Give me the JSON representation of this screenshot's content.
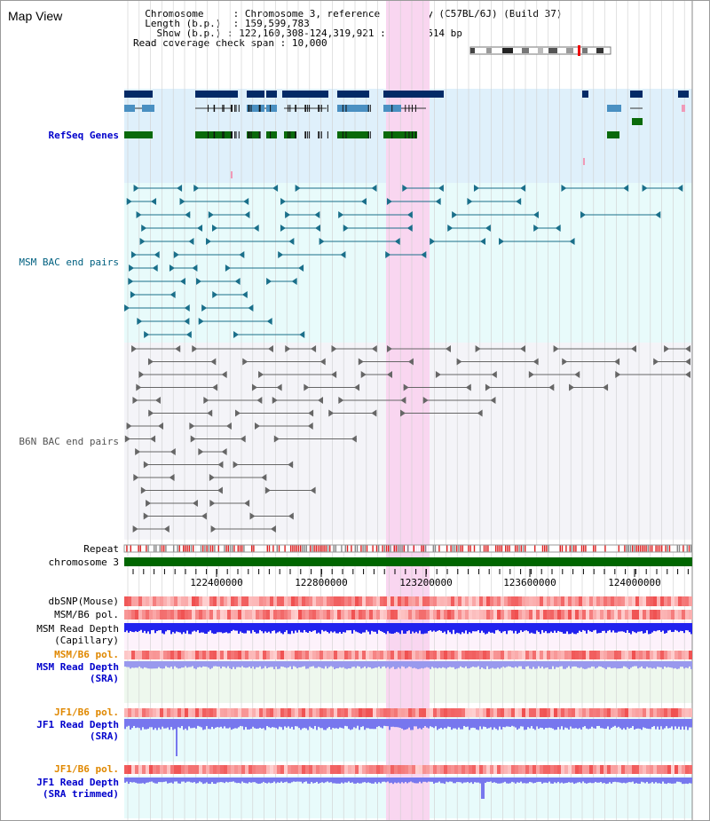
{
  "title": "Map View",
  "info": {
    "chromosome_key": "Chromosome",
    "chromosome_value": "Chromosome 3, reference assembly (C57BL/6J) (Build 37)",
    "length_key": "Length (b.p.)",
    "length_value": "159,599,783",
    "show_key": "Show (b.p.)",
    "show_value": "122,160,308-124,319,921 : 2,159,614 bp",
    "coverage_key": "Read coverage check span",
    "coverage_value": "10,000"
  },
  "tracks": {
    "refseq": "RefSeq Genes",
    "msm_bac": "MSM BAC end pairs",
    "b6n_bac": "B6N BAC end pairs",
    "repeat": "Repeat",
    "chromosome": "chromosome 3",
    "dbsnp": "dbSNP(Mouse)",
    "msm_b6_pol": "MSM/B6 pol.",
    "msm_depth_cap_1": "MSM Read Depth",
    "msm_depth_cap_2": "(Capillary)",
    "msm_b6_pol_2": "MSM/B6 pol.",
    "msm_depth_sra_1": "MSM Read Depth",
    "msm_depth_sra_2": "(SRA)",
    "jf1_b6_pol": "JF1/B6 pol.",
    "jf1_depth_sra_1": "JF1 Read Depth",
    "jf1_depth_sra_2": "(SRA)",
    "jf1_b6_pol_2": "JF1/B6 pol.",
    "jf1_depth_trim_1": "JF1 Read Depth",
    "jf1_depth_trim_2": "(SRA trimmed)"
  },
  "axis_ticks": [
    "122400000",
    "122800000",
    "123200000",
    "123600000",
    "124000000"
  ],
  "colors": {
    "refseq_bg": "#dff0fb",
    "msm_bg": "#e8fbfb",
    "b6n_bg": "#f4f4f8",
    "highlight": "#f9d6f0",
    "refseq_label": "#0000cc",
    "msm_label": "#006080",
    "b6n_label": "#555555",
    "orange_label": "#e08800",
    "blue_label": "#0000cc",
    "chromosome_bar": "#006600"
  }
}
